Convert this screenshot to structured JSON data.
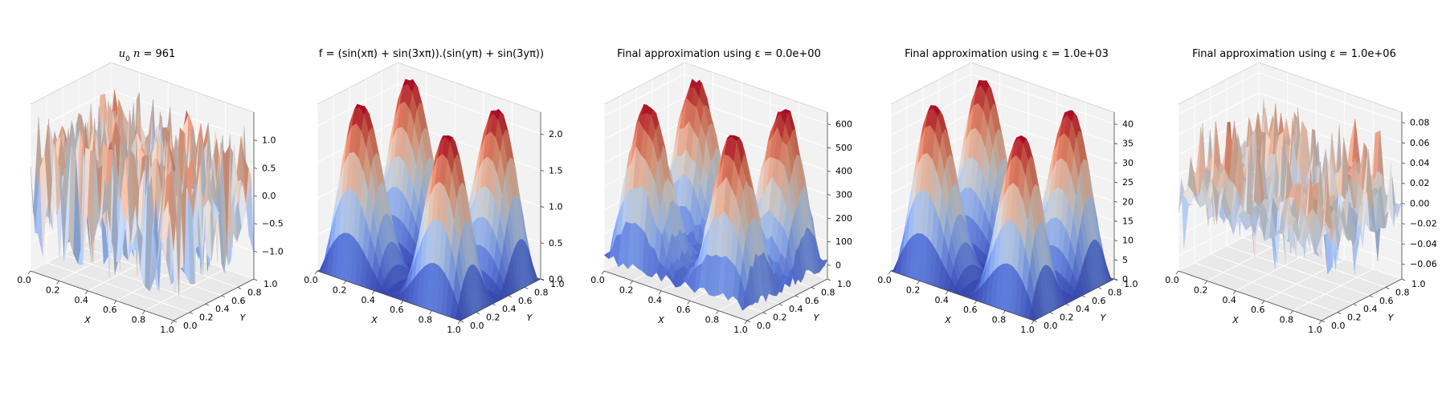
{
  "figure": {
    "background": "#ffffff",
    "colormap": "coolwarm"
  },
  "chart_data": [
    {
      "type": "surface",
      "title": "u₀ n = 961",
      "xlabel": "X",
      "ylabel": "Y",
      "xlim": [
        0,
        1
      ],
      "ylim": [
        0,
        1
      ],
      "zlim": [
        -1.5,
        1.5
      ],
      "xticks": [
        "0.0",
        "0.2",
        "0.4",
        "0.6",
        "0.8",
        "1.0"
      ],
      "yticks": [
        "0.0",
        "0.2",
        "0.4",
        "0.6",
        "0.8",
        "1.0"
      ],
      "zticks": [
        -1.0,
        -0.5,
        0.0,
        0.5,
        1.0
      ],
      "zticklabels": [
        "−1.0",
        "−0.5",
        "0.0",
        "0.5",
        "1.0"
      ],
      "grid": true,
      "n": 961,
      "grid_size": 31,
      "surface": "noisy field, spikes between −1.2 and 1.2",
      "noise_amplitude": 1.2
    },
    {
      "type": "surface",
      "title": "f = (sin(xπ) + sin(3xπ)).(sin(yπ) + sin(3yπ))",
      "xlabel": "X",
      "ylabel": "Y",
      "xlim": [
        0,
        1
      ],
      "ylim": [
        0,
        1
      ],
      "zlim": [
        0,
        2.3
      ],
      "xticks": [
        "0.0",
        "0.2",
        "0.4",
        "0.6",
        "0.8",
        "1.0"
      ],
      "yticks": [
        "0.0",
        "0.2",
        "0.4",
        "0.6",
        "0.8",
        "1.0"
      ],
      "zticks": [
        0.0,
        0.5,
        1.0,
        1.5,
        2.0
      ],
      "zticklabels": [
        "0.0",
        "0.5",
        "1.0",
        "1.5",
        "2.0"
      ],
      "grid": true,
      "grid_size": 31,
      "surface": "four peaks of height ≈2.2 at (x,y) ∈ {0.2,0.8}², central dip ≈0",
      "scale": 1.0
    },
    {
      "type": "surface",
      "title": "Final approximation using ε = 0.0e+00",
      "xlabel": "X",
      "ylabel": "Y",
      "xlim": [
        0,
        1
      ],
      "ylim": [
        0,
        1
      ],
      "zlim": [
        -60,
        650
      ],
      "xticks": [
        "0.0",
        "0.2",
        "0.4",
        "0.6",
        "0.8",
        "1.0"
      ],
      "yticks": [
        "0.0",
        "0.2",
        "0.4",
        "0.6",
        "0.8",
        "1.0"
      ],
      "zticks": [
        0,
        100,
        200,
        300,
        400,
        500,
        600
      ],
      "zticklabels": [
        "0",
        "100",
        "200",
        "300",
        "400",
        "500",
        "600"
      ],
      "grid": true,
      "grid_size": 31,
      "surface": "same four-peak shape scaled to ≈620 with slight noise",
      "scale": 280,
      "noise_amplitude": 25
    },
    {
      "type": "surface",
      "title": "Final approximation using ε = 1.0e+03",
      "xlabel": "X",
      "ylabel": "Y",
      "xlim": [
        0,
        1
      ],
      "ylim": [
        0,
        1
      ],
      "zlim": [
        0,
        43
      ],
      "xticks": [
        "0.0",
        "0.2",
        "0.4",
        "0.6",
        "0.8",
        "1.0"
      ],
      "yticks": [
        "0.0",
        "0.2",
        "0.4",
        "0.6",
        "0.8",
        "1.0"
      ],
      "zticks": [
        0,
        5,
        10,
        15,
        20,
        25,
        30,
        35,
        40
      ],
      "zticklabels": [
        "0",
        "5",
        "10",
        "15",
        "20",
        "25",
        "30",
        "35",
        "40"
      ],
      "grid": true,
      "grid_size": 31,
      "surface": "smooth four-peak shape scaled to ≈40",
      "scale": 18.5
    },
    {
      "type": "surface",
      "title": "Final approximation using ε = 1.0e+06",
      "xlabel": "X",
      "ylabel": "Y",
      "xlim": [
        0,
        1
      ],
      "ylim": [
        0,
        1
      ],
      "zlim": [
        -0.075,
        0.09
      ],
      "xticks": [
        "0.0",
        "0.2",
        "0.4",
        "0.6",
        "0.8",
        "1.0"
      ],
      "yticks": [
        "0.0",
        "0.2",
        "0.4",
        "0.6",
        "0.8",
        "1.0"
      ],
      "zticks": [
        -0.06,
        -0.04,
        -0.02,
        0.0,
        0.02,
        0.04,
        0.06,
        0.08
      ],
      "zticklabels": [
        "−0.06",
        "−0.04",
        "−0.02",
        "0.00",
        "0.02",
        "0.04",
        "0.06",
        "0.08"
      ],
      "grid": true,
      "grid_size": 31,
      "surface": "irregular low-amplitude surface between −0.07 and 0.08 with spikes",
      "scale": 0.012,
      "noise_amplitude": 0.03
    }
  ]
}
